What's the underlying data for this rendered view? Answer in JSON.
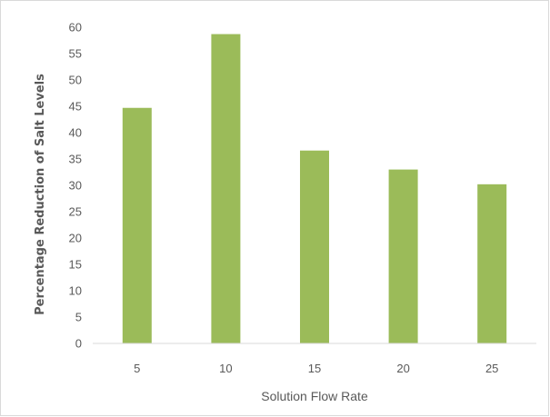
{
  "chart_data": {
    "type": "bar",
    "categories": [
      "5",
      "10",
      "15",
      "20",
      "25"
    ],
    "values": [
      44.7,
      58.7,
      36.6,
      33.0,
      30.2
    ],
    "xlabel": "Solution Flow Rate",
    "ylabel": "Percentage Reduction of Salt Levels",
    "ylim": [
      0,
      60
    ],
    "yticks": [
      0,
      5,
      10,
      15,
      20,
      25,
      30,
      35,
      40,
      45,
      50,
      55,
      60
    ],
    "grid": false,
    "bar_color": "#9bbb59"
  }
}
